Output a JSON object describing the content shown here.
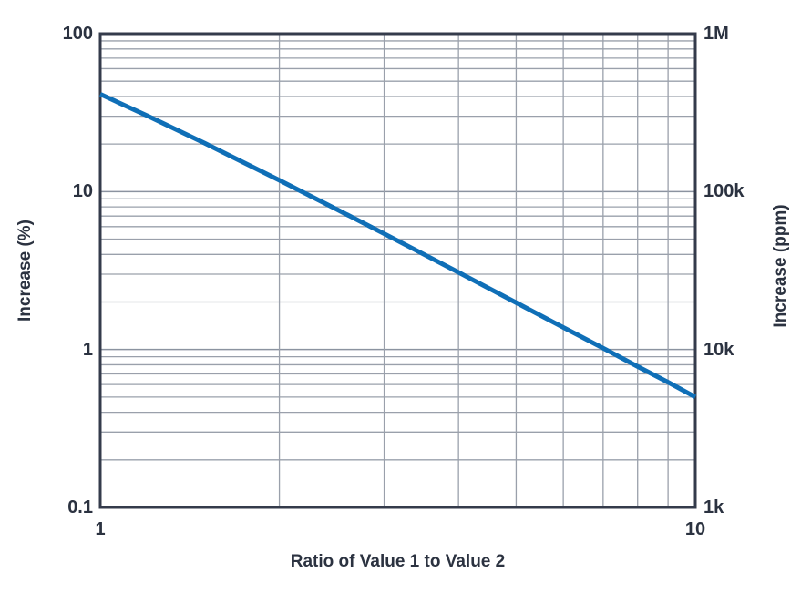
{
  "colors": {
    "line": "#0f6fb7",
    "axis_frame": "#343b4b",
    "grid_minor": "#9aa0ab",
    "grid_major": "#8b93a0",
    "text": "#2b3240",
    "background": "#ffffff"
  },
  "chart_data": {
    "type": "line",
    "title": "",
    "xlabel": "Ratio of Value 1 to Value 2",
    "ylabel_left": "Increase (%)",
    "ylabel_right": "Increase (ppm)",
    "x_scale": "log",
    "y_scale": "log",
    "xlim": [
      1,
      10
    ],
    "ylim_left_percent": [
      0.1,
      100
    ],
    "ylim_right_ppm": [
      1000,
      1000000
    ],
    "grid": "on, log minor gridlines both axes, boxed frame",
    "legend": "none",
    "x_ticks": [
      {
        "value": 1,
        "label": "1"
      },
      {
        "value": 10,
        "label": "10"
      }
    ],
    "left_ticks": [
      {
        "value": 100,
        "label": "100"
      },
      {
        "value": 10,
        "label": "10"
      },
      {
        "value": 1,
        "label": "1"
      },
      {
        "value": 0.1,
        "label": "0.1"
      }
    ],
    "right_ticks": [
      {
        "value": 1000000,
        "label": "1M"
      },
      {
        "value": 100000,
        "label": "100k"
      },
      {
        "value": 10000,
        "label": "10k"
      },
      {
        "value": 1000,
        "label": "1k"
      }
    ],
    "series": [
      {
        "color": "#0f6fb7",
        "points": [
          {
            "x": 1.0,
            "y_percent": 41.4,
            "y_ppm": 414000
          },
          {
            "x": 1.2,
            "y_percent": 30.2,
            "y_ppm": 302000
          },
          {
            "x": 1.5,
            "y_percent": 20.2,
            "y_ppm": 202000
          },
          {
            "x": 2.0,
            "y_percent": 11.8,
            "y_ppm": 118000
          },
          {
            "x": 2.5,
            "y_percent": 7.7,
            "y_ppm": 77000
          },
          {
            "x": 3.0,
            "y_percent": 5.41,
            "y_ppm": 54100
          },
          {
            "x": 3.5,
            "y_percent": 4.0,
            "y_ppm": 40000
          },
          {
            "x": 4.0,
            "y_percent": 3.08,
            "y_ppm": 30800
          },
          {
            "x": 5.0,
            "y_percent": 1.98,
            "y_ppm": 19800
          },
          {
            "x": 6.0,
            "y_percent": 1.38,
            "y_ppm": 13800
          },
          {
            "x": 7.0,
            "y_percent": 1.02,
            "y_ppm": 10200
          },
          {
            "x": 8.0,
            "y_percent": 0.78,
            "y_ppm": 7800
          },
          {
            "x": 9.0,
            "y_percent": 0.62,
            "y_ppm": 6200
          },
          {
            "x": 10.0,
            "y_percent": 0.5,
            "y_ppm": 5000
          }
        ]
      }
    ]
  }
}
